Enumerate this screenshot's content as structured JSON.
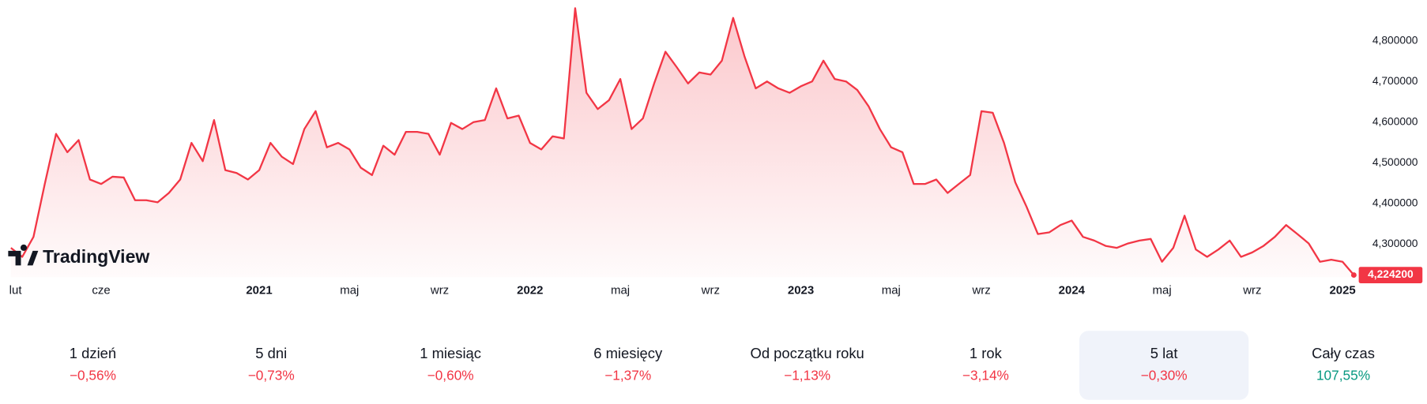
{
  "chart_data": {
    "type": "line",
    "watermark": "TradingView",
    "categories": [
      "lut",
      null,
      null,
      null,
      null,
      null,
      null,
      null,
      "cze",
      null,
      null,
      null,
      null,
      null,
      null,
      null,
      null,
      null,
      null,
      null,
      null,
      null,
      "2021",
      null,
      null,
      null,
      null,
      null,
      null,
      null,
      "maj",
      null,
      null,
      null,
      null,
      null,
      null,
      null,
      "wrz",
      null,
      null,
      null,
      null,
      null,
      null,
      null,
      "2022",
      null,
      null,
      null,
      null,
      null,
      null,
      null,
      "maj",
      null,
      null,
      null,
      null,
      null,
      null,
      null,
      "wrz",
      null,
      null,
      null,
      null,
      null,
      null,
      null,
      "2023",
      null,
      null,
      null,
      null,
      null,
      null,
      null,
      "maj",
      null,
      null,
      null,
      null,
      null,
      null,
      null,
      "wrz",
      null,
      null,
      null,
      null,
      null,
      null,
      null,
      "2024",
      null,
      null,
      null,
      null,
      null,
      null,
      null,
      "maj",
      null,
      null,
      null,
      null,
      null,
      null,
      null,
      "wrz",
      null,
      null,
      null,
      null,
      null,
      null,
      null,
      "2025",
      null
    ],
    "series": [
      {
        "color": "#f23645",
        "values": [
          4.291,
          4.269,
          4.318,
          4.448,
          4.571,
          4.526,
          4.556,
          4.459,
          4.448,
          4.466,
          4.464,
          4.408,
          4.408,
          4.403,
          4.426,
          4.459,
          4.549,
          4.504,
          4.605,
          4.482,
          4.475,
          4.459,
          4.482,
          4.549,
          4.515,
          4.497,
          4.583,
          4.627,
          4.538,
          4.549,
          4.533,
          4.488,
          4.47,
          4.542,
          4.52,
          4.576,
          4.576,
          4.571,
          4.52,
          4.598,
          4.583,
          4.6,
          4.605,
          4.683,
          4.609,
          4.616,
          4.549,
          4.533,
          4.565,
          4.56,
          4.88,
          4.672,
          4.632,
          4.654,
          4.706,
          4.583,
          4.609,
          4.695,
          4.773,
          4.735,
          4.695,
          4.722,
          4.717,
          4.751,
          4.856,
          4.762,
          4.683,
          4.7,
          4.683,
          4.672,
          4.688,
          4.7,
          4.751,
          4.706,
          4.7,
          4.679,
          4.639,
          4.583,
          4.538,
          4.526,
          4.448,
          4.448,
          4.459,
          4.426,
          4.448,
          4.47,
          4.627,
          4.623,
          4.549,
          4.452,
          4.392,
          4.325,
          4.329,
          4.347,
          4.358,
          4.318,
          4.309,
          4.296,
          4.291,
          4.302,
          4.309,
          4.313,
          4.257,
          4.291,
          4.37,
          4.287,
          4.269,
          4.287,
          4.309,
          4.269,
          4.28,
          4.296,
          4.318,
          4.347,
          4.325,
          4.302,
          4.257,
          4.262,
          4.257,
          4.2242
        ]
      }
    ],
    "price_label": {
      "value": 4.2242,
      "label": "4,224200"
    },
    "ylim": [
      4.21,
      4.9
    ],
    "yticks": [
      {
        "value": 4.3,
        "label": "4,300000"
      },
      {
        "value": 4.4,
        "label": "4,400000"
      },
      {
        "value": 4.5,
        "label": "4,500000"
      },
      {
        "value": 4.6,
        "label": "4,600000"
      },
      {
        "value": 4.7,
        "label": "4,700000"
      },
      {
        "value": 4.8,
        "label": "4,800000"
      }
    ],
    "grid": false
  },
  "periods": [
    {
      "label": "1 dzień",
      "change": {
        "value": -0.56,
        "label": "−0,56%"
      }
    },
    {
      "label": "5 dni",
      "change": {
        "value": -0.73,
        "label": "−0,73%"
      }
    },
    {
      "label": "1 miesiąc",
      "change": {
        "value": -0.6,
        "label": "−0,60%"
      }
    },
    {
      "label": "6 miesięcy",
      "change": {
        "value": -1.37,
        "label": "−1,37%"
      }
    },
    {
      "label": "Od początku roku",
      "change": {
        "value": -1.13,
        "label": "−1,13%"
      }
    },
    {
      "label": "1 rok",
      "change": {
        "value": -3.14,
        "label": "−3,14%"
      }
    },
    {
      "label": "5 lat",
      "change": {
        "value": -0.3,
        "label": "−0,30%"
      },
      "active": true
    },
    {
      "label": "Cały czas",
      "change": {
        "value": 107.55,
        "label": "107,55%"
      }
    }
  ]
}
